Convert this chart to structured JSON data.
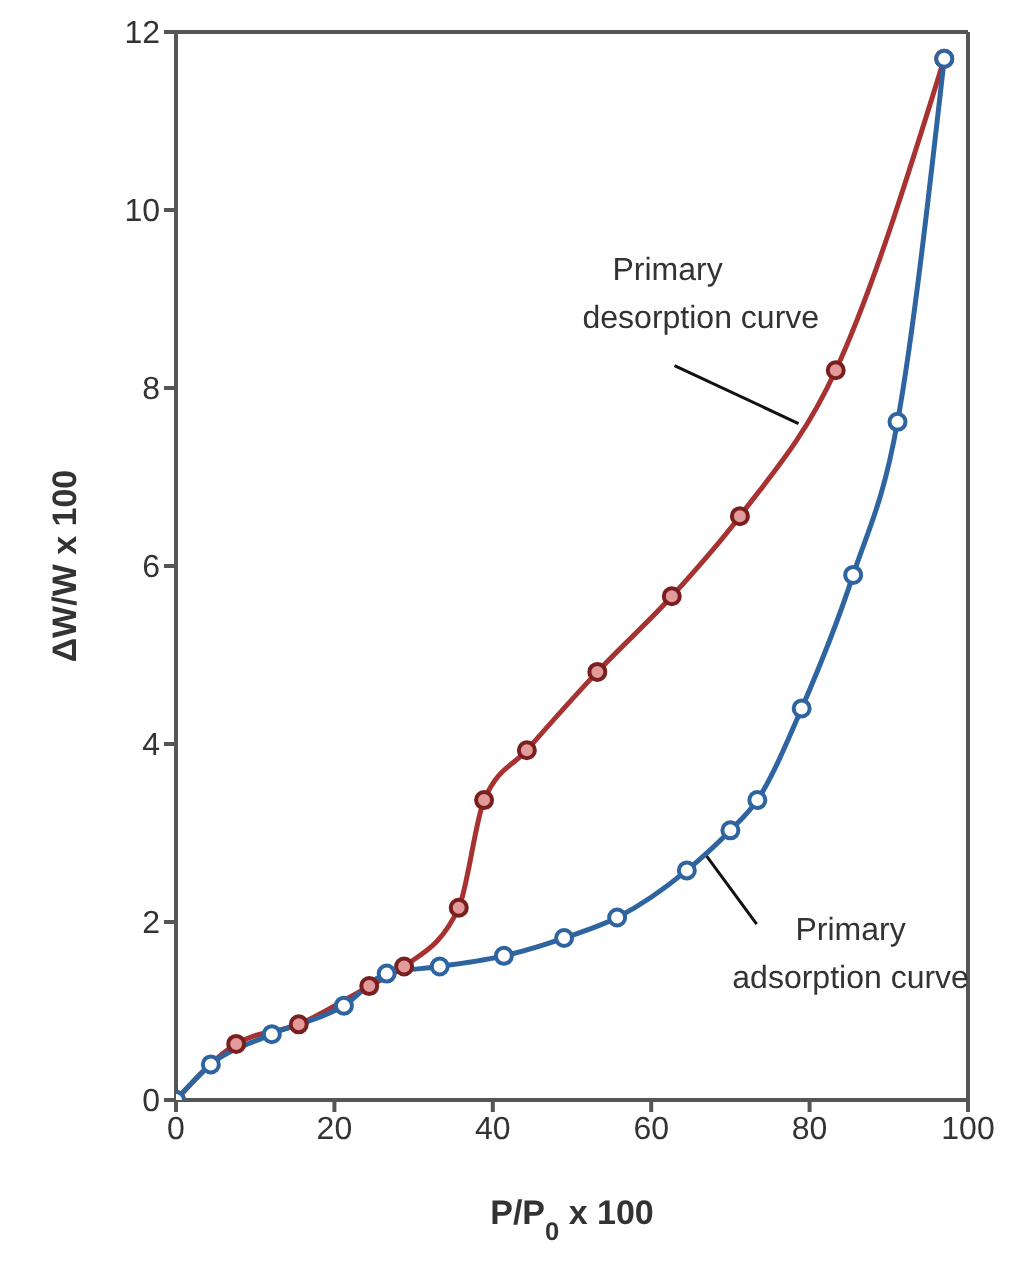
{
  "chart_data": {
    "type": "line",
    "xlabel": "P/P$_{0}$ x 100",
    "ylabel": "ΔW/W x 100",
    "xlim": [
      0,
      100
    ],
    "xticks": [
      0,
      20,
      40,
      60,
      80,
      100
    ],
    "ylim": [
      0,
      12
    ],
    "yticks": [
      0,
      2,
      4,
      6,
      8,
      10,
      12
    ],
    "marker": "circle",
    "series": [
      {
        "color": "#a83232",
        "x": [
          0,
          7.6,
          15.5,
          24.4,
          28.8,
          35.7,
          38.9,
          44.3,
          53.2,
          62.6,
          71.2,
          83.3,
          97
        ],
        "values": [
          0,
          0.63,
          0.85,
          1.28,
          1.5,
          2.16,
          3.37,
          3.93,
          4.81,
          5.66,
          6.56,
          8.2,
          11.7
        ]
      },
      {
        "color": "#2e64a0",
        "x": [
          0,
          4.4,
          12.1,
          21.2,
          26.6,
          33.3,
          41.4,
          49,
          55.7,
          64.5,
          70,
          73.4,
          79,
          85.5,
          91.1,
          97
        ],
        "values": [
          0,
          0.4,
          0.74,
          1.06,
          1.42,
          1.5,
          1.62,
          1.82,
          2.05,
          2.58,
          3.03,
          3.37,
          4.4,
          5.9,
          7.62,
          11.7
        ]
      }
    ],
    "annotations": [
      {
        "text": "Primary desorption curve",
        "x": 78.6,
        "y": 7.6
      },
      {
        "text": "Primary adsorption curve",
        "x": 67,
        "y": 2.74
      }
    ]
  }
}
